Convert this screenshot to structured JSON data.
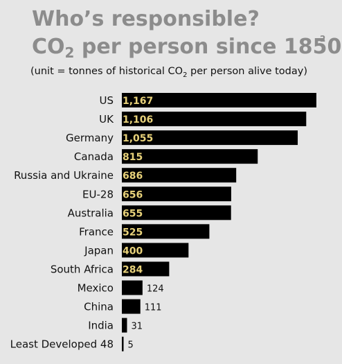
{
  "chart_data": {
    "type": "bar",
    "orientation": "horizontal",
    "title_line1": "Who’s responsible?",
    "title_line2_pre": "CO",
    "title_line2_sub": "2",
    "title_line2_post": " per person since 1850",
    "title_sup": "2",
    "subtitle_pre": "(unit = tonnes of historical CO",
    "subtitle_sub": "2",
    "subtitle_post": " per person alive today)",
    "categories": [
      "US",
      "UK",
      "Germany",
      "Canada",
      "Russia and Ukraine",
      "EU-28",
      "Australia",
      "France",
      "Japan",
      "South Africa",
      "Mexico",
      "China",
      "India",
      "Least Developed 48"
    ],
    "values": [
      1167,
      1106,
      1055,
      815,
      686,
      656,
      655,
      525,
      400,
      284,
      124,
      111,
      31,
      5
    ],
    "value_labels": [
      "1,167",
      "1,106",
      "1,055",
      "815",
      "686",
      "656",
      "655",
      "525",
      "400",
      "284",
      "124",
      "111",
      "31",
      "5"
    ],
    "xlim": [
      0,
      1167
    ],
    "grid": false,
    "colors": {
      "bar": "#000000",
      "bar_label": "#e8d27a",
      "title": "#8c8c8c",
      "background": "#e6e6e6"
    }
  }
}
